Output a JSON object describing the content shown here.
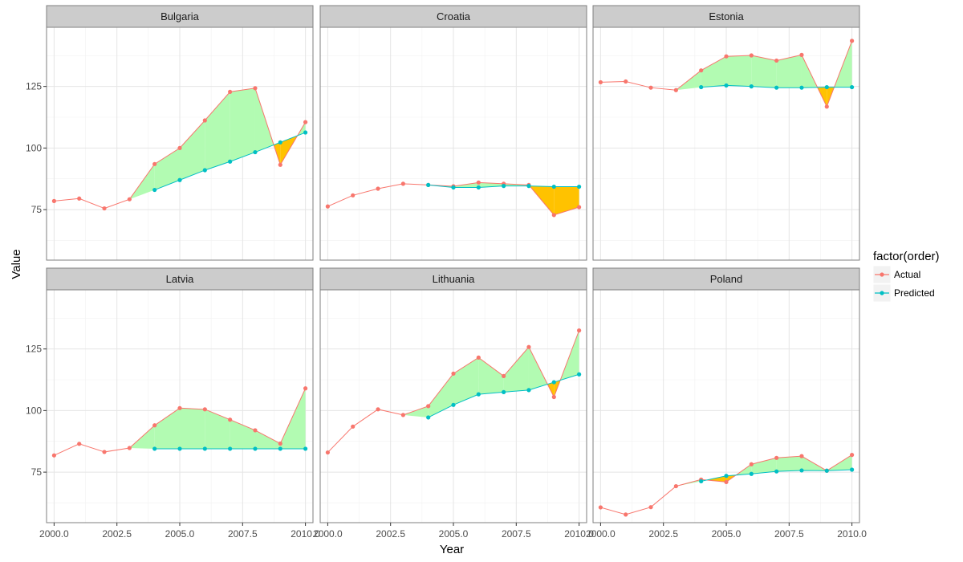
{
  "chart_data": {
    "type": "line",
    "facet_by": "country",
    "xlabel": "Year",
    "ylabel": "Value",
    "x_ticks": [
      "2000.0",
      "2002.5",
      "2005.0",
      "2007.5",
      "2010.0"
    ],
    "y_ticks": [
      "75",
      "100",
      "125"
    ],
    "xlim": [
      1999.7,
      2010.3
    ],
    "ylim": [
      54.5,
      149
    ],
    "grid": true,
    "legend": {
      "title": "factor(order)",
      "position": "right",
      "entries": [
        {
          "label": "Actual",
          "color": "#F8766D"
        },
        {
          "label": "Predicted",
          "color": "#00BFC4"
        }
      ]
    },
    "fill_colors": {
      "actual_below": "#FFC200",
      "actual_above": "#B2FBB2"
    },
    "panels": [
      {
        "name": "Bulgaria",
        "actual": {
          "x": [
            2000,
            2001,
            2002,
            2003,
            2004,
            2005,
            2006,
            2007,
            2008,
            2009,
            2010
          ],
          "y": [
            78.5,
            79.5,
            75.5,
            79.2,
            93.5,
            100,
            111.2,
            122.8,
            124.3,
            93.2,
            110.5
          ]
        },
        "predicted": {
          "x": [
            2004,
            2005,
            2006,
            2007,
            2008,
            2009,
            2010
          ],
          "y": [
            83,
            87,
            91,
            94.5,
            98.3,
            102.3,
            106.3
          ]
        }
      },
      {
        "name": "Croatia",
        "actual": {
          "x": [
            2000,
            2001,
            2002,
            2003,
            2004,
            2005,
            2006,
            2007,
            2008,
            2009,
            2010
          ],
          "y": [
            76.3,
            80.8,
            83.5,
            85.5,
            85,
            84.5,
            86,
            85.5,
            85,
            72.8,
            76
          ]
        },
        "predicted": {
          "x": [
            2004,
            2005,
            2006,
            2007,
            2008,
            2009,
            2010
          ],
          "y": [
            85,
            84,
            84,
            84.6,
            84.6,
            84.3,
            84.3
          ]
        }
      },
      {
        "name": "Estonia",
        "actual": {
          "x": [
            2000,
            2001,
            2002,
            2003,
            2004,
            2005,
            2006,
            2007,
            2008,
            2009,
            2010
          ],
          "y": [
            126.7,
            127,
            124.5,
            123.5,
            131.5,
            137.2,
            137.6,
            135.5,
            137.8,
            116.8,
            143.5
          ]
        },
        "predicted": {
          "x": [
            2004,
            2005,
            2006,
            2007,
            2008,
            2009,
            2010
          ],
          "y": [
            124.7,
            125.4,
            125,
            124.5,
            124.5,
            124.7,
            124.7
          ]
        }
      },
      {
        "name": "Latvia",
        "actual": {
          "x": [
            2000,
            2001,
            2002,
            2003,
            2004,
            2005,
            2006,
            2007,
            2008,
            2009,
            2010
          ],
          "y": [
            81.8,
            86.5,
            83.2,
            84.8,
            94,
            101,
            100.5,
            96.3,
            92,
            86.6,
            109
          ]
        },
        "predicted": {
          "x": [
            2004,
            2005,
            2006,
            2007,
            2008,
            2009,
            2010
          ],
          "y": [
            84.5,
            84.5,
            84.5,
            84.5,
            84.5,
            84.5,
            84.5
          ]
        }
      },
      {
        "name": "Lithuania",
        "actual": {
          "x": [
            2000,
            2001,
            2002,
            2003,
            2004,
            2005,
            2006,
            2007,
            2008,
            2009,
            2010
          ],
          "y": [
            83,
            93.5,
            100.5,
            98.2,
            101.8,
            115,
            121.5,
            114,
            125.8,
            105.5,
            132.5
          ]
        },
        "predicted": {
          "x": [
            2004,
            2005,
            2006,
            2007,
            2008,
            2009,
            2010
          ],
          "y": [
            97.2,
            102.3,
            106.6,
            107.5,
            108.3,
            111.5,
            114.7
          ]
        }
      },
      {
        "name": "Poland",
        "actual": {
          "x": [
            2000,
            2001,
            2002,
            2003,
            2004,
            2005,
            2006,
            2007,
            2008,
            2009,
            2010
          ],
          "y": [
            60.7,
            57.8,
            60.8,
            69.3,
            72,
            71,
            78.2,
            80.8,
            81.5,
            75.6,
            82
          ]
        },
        "predicted": {
          "x": [
            2004,
            2005,
            2006,
            2007,
            2008,
            2009,
            2010
          ],
          "y": [
            71.3,
            73.5,
            74.3,
            75.3,
            75.7,
            75.6,
            76
          ]
        }
      }
    ]
  }
}
